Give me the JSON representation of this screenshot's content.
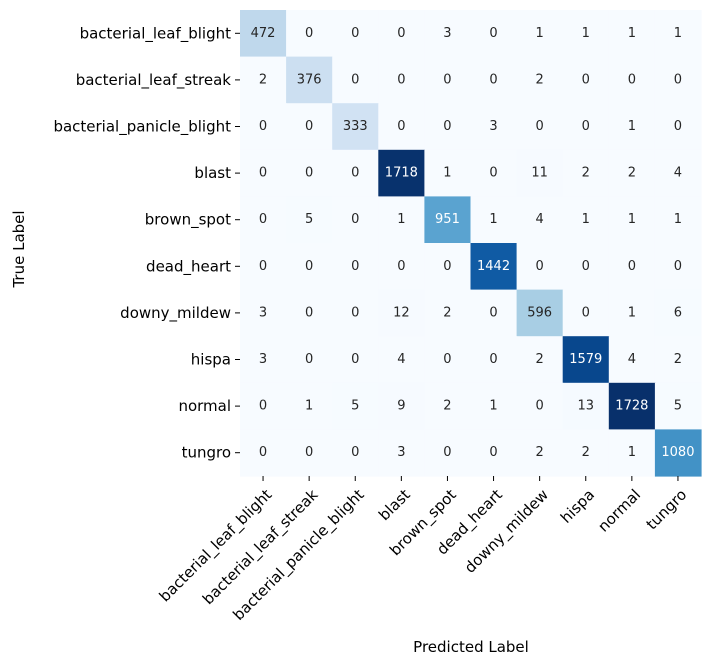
{
  "chart_data": {
    "type": "heatmap",
    "title": "",
    "xlabel": "Predicted Label",
    "ylabel": "True Label",
    "colormap": "Blues",
    "color_low": "#f7fbff",
    "color_high": "#08306b",
    "colorbar": false,
    "grid": false,
    "x_categories": [
      "bacterial_leaf_blight",
      "bacterial_leaf_streak",
      "bacterial_panicle_blight",
      "blast",
      "brown_spot",
      "dead_heart",
      "downy_mildew",
      "hispa",
      "normal",
      "tungro"
    ],
    "y_categories": [
      "bacterial_leaf_blight",
      "bacterial_leaf_streak",
      "bacterial_panicle_blight",
      "blast",
      "brown_spot",
      "dead_heart",
      "downy_mildew",
      "hispa",
      "normal",
      "tungro"
    ],
    "values": [
      [
        472,
        0,
        0,
        0,
        3,
        0,
        1,
        1,
        1,
        1
      ],
      [
        2,
        376,
        0,
        0,
        0,
        0,
        2,
        0,
        0,
        0
      ],
      [
        0,
        0,
        333,
        0,
        0,
        3,
        0,
        0,
        1,
        0
      ],
      [
        0,
        0,
        0,
        1718,
        1,
        0,
        11,
        2,
        2,
        4
      ],
      [
        0,
        5,
        0,
        1,
        951,
        1,
        4,
        1,
        1,
        1
      ],
      [
        0,
        0,
        0,
        0,
        0,
        1442,
        0,
        0,
        0,
        0
      ],
      [
        3,
        0,
        0,
        12,
        2,
        0,
        596,
        0,
        1,
        6
      ],
      [
        3,
        0,
        0,
        4,
        0,
        0,
        2,
        1579,
        4,
        2
      ],
      [
        0,
        1,
        5,
        9,
        2,
        1,
        0,
        13,
        1728,
        5
      ],
      [
        0,
        0,
        0,
        3,
        0,
        0,
        2,
        2,
        1,
        1080
      ]
    ]
  }
}
